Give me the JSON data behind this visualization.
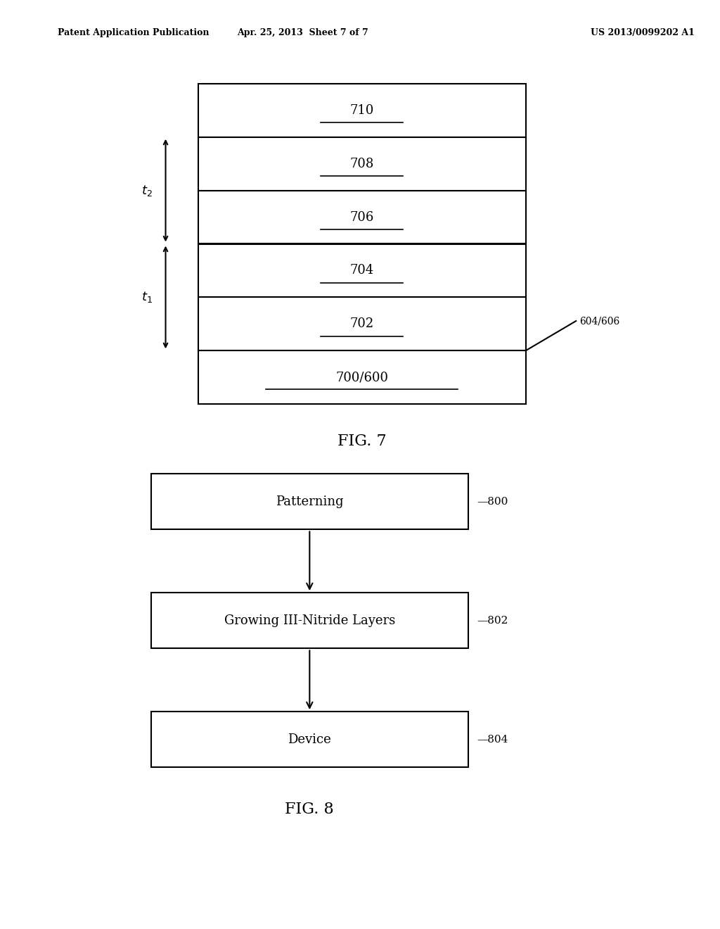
{
  "bg_color": "#ffffff",
  "header_left": "Patent Application Publication",
  "header_mid": "Apr. 25, 2013  Sheet 7 of 7",
  "header_right": "US 2013/0099202 A1",
  "fig7_title": "FIG. 7",
  "fig8_title": "FIG. 8",
  "fig7": {
    "layers": [
      "710",
      "708",
      "706",
      "704",
      "702",
      "700/600"
    ],
    "side_label": "604/606"
  },
  "fig8": {
    "boxes": [
      "Patterning",
      "Growing III-Nitride Layers",
      "Device"
    ],
    "labels": [
      "800",
      "802",
      "804"
    ]
  }
}
